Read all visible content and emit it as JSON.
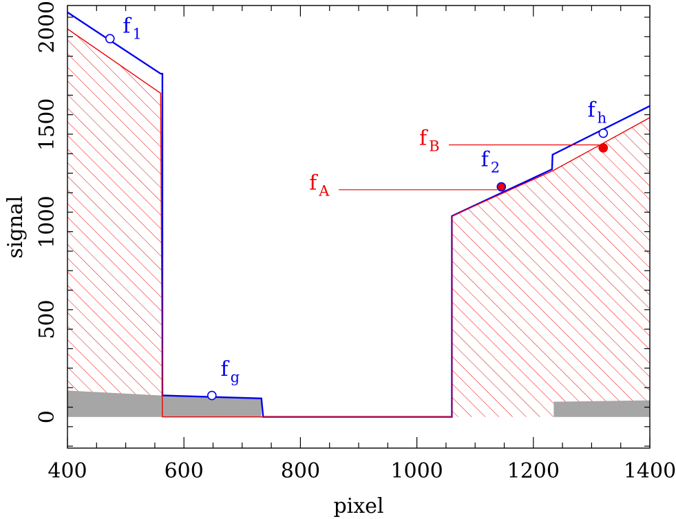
{
  "chart_data": {
    "type": "line",
    "xlabel": "pixel",
    "ylabel": "signal",
    "xlim": [
      400,
      1400
    ],
    "ylim": [
      -160,
      2110
    ],
    "grid": false,
    "x_ticks": [
      400,
      600,
      800,
      1000,
      1200,
      1400
    ],
    "y_ticks": [
      0,
      500,
      1000,
      1500,
      2000
    ],
    "colors": {
      "blue": "#0000ee",
      "red": "#ee0000",
      "gray": "#a6a6a6",
      "axis": "#000000"
    },
    "series": [
      {
        "color": "blue",
        "style": "line",
        "x": [
          400,
          560,
          563,
          563,
          733,
          736,
          1060,
          1060,
          1232,
          1233,
          1400
        ],
        "y": [
          2075,
          1760,
          1760,
          110,
          95,
          0,
          0,
          1030,
          1270,
          1345,
          1595
        ]
      },
      {
        "color": "red",
        "style": "line-hatched",
        "x": [
          400,
          560,
          563,
          1060,
          1060,
          1235,
          1400
        ],
        "y": [
          1990,
          1660,
          0,
          0,
          1030,
          1265,
          1535
        ]
      },
      {
        "color": "gray",
        "style": "fill",
        "x": [
          400,
          560,
          560,
          733,
          733,
          400
        ],
        "y": [
          135,
          110,
          110,
          95,
          0,
          0
        ]
      },
      {
        "color": "gray",
        "style": "fill",
        "x": [
          1235,
          1400,
          1400,
          1235
        ],
        "y": [
          78,
          85,
          0,
          0
        ]
      }
    ],
    "markers": [
      {
        "x": 473,
        "y": 1940,
        "color": "blue",
        "filled": false
      },
      {
        "x": 648,
        "y": 110,
        "color": "blue",
        "filled": false
      },
      {
        "x": 1145,
        "y": 1180,
        "color": "blue",
        "filled": true
      },
      {
        "x": 1320,
        "y": 1455,
        "color": "blue",
        "filled": false
      },
      {
        "x": 1320,
        "y": 1380,
        "color": "red",
        "filled": true
      }
    ],
    "annotations": [
      {
        "base": "f",
        "sub": "1",
        "color": "blue",
        "x": 495,
        "y": 1970
      },
      {
        "base": "f",
        "sub": "g",
        "color": "blue",
        "x": 663,
        "y": 210
      },
      {
        "base": "f",
        "sub": "2",
        "color": "blue",
        "x": 1110,
        "y": 1285
      },
      {
        "base": "f",
        "sub": "h",
        "color": "blue",
        "x": 1293,
        "y": 1540
      },
      {
        "base": "f",
        "sub": "A",
        "color": "red",
        "x": 815,
        "y": 1165,
        "line_to": 1138
      },
      {
        "base": "f",
        "sub": "B",
        "color": "red",
        "x": 1004,
        "y": 1395,
        "line_to": 1313
      }
    ]
  }
}
